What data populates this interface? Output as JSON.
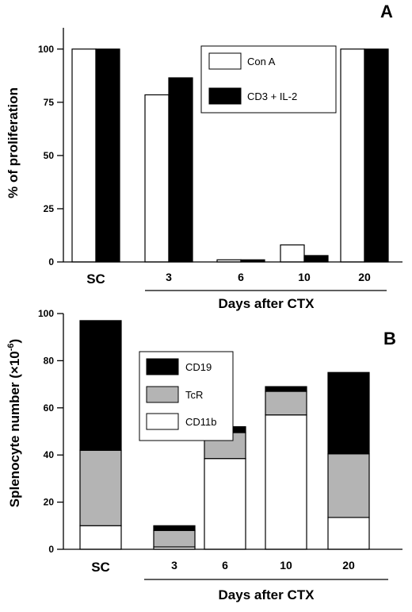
{
  "chart_data": [
    {
      "type": "bar",
      "panel_label": "A",
      "categories": [
        "SC",
        "3",
        "6",
        "10",
        "20"
      ],
      "series": [
        {
          "name": "Con A",
          "color": "#ffffff",
          "values": [
            100,
            78.5,
            1,
            8,
            100
          ]
        },
        {
          "name": "CD3 + IL-2",
          "color": "#000000",
          "values": [
            100,
            86.5,
            1,
            3,
            100
          ]
        }
      ],
      "ylabel": "% of proliferation",
      "xlabel": "Days after CTX",
      "ylim": [
        0,
        110
      ],
      "yticks": [
        "0",
        "25",
        "50",
        "75",
        "100"
      ],
      "legend": "top-right"
    },
    {
      "type": "bar",
      "stacked": true,
      "panel_label": "B",
      "categories": [
        "SC",
        "3",
        "6",
        "10",
        "20"
      ],
      "series": [
        {
          "name": "CD11b",
          "color": "#ffffff",
          "values": [
            10,
            1,
            38.5,
            57,
            13.5
          ]
        },
        {
          "name": "TcR",
          "color": "#b4b4b4",
          "values": [
            32,
            7,
            11,
            10,
            27
          ]
        },
        {
          "name": "CD19",
          "color": "#000000",
          "values": [
            55,
            2,
            2.5,
            2,
            34.5
          ]
        }
      ],
      "ylabel_main": "Splenocyte number (",
      "ylabel_times": "×10",
      "ylabel_exp": "-6",
      "ylabel_close": ")",
      "xlabel": "Days after CTX",
      "ylim": [
        0,
        100
      ],
      "yticks": [
        "0",
        "20",
        "40",
        "60",
        "80",
        "100"
      ],
      "legend": "top-left"
    }
  ]
}
